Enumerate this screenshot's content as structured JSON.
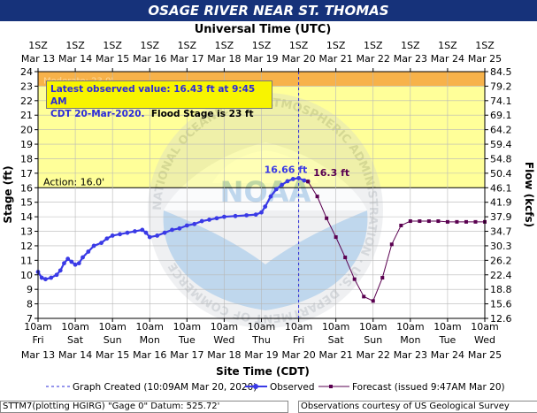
{
  "title": "OSAGE RIVER NEAR ST. THOMAS",
  "top_axis_title": "Universal Time (UTC)",
  "bottom_axis_title": "Site Time (CDT)",
  "left_axis_title": "Stage (ft)",
  "right_axis_title": "Flow (kcfs)",
  "info_line1": "Latest observed value: 16.43 ft at 9:45 AM",
  "info_line2a": "CDT 20-Mar-2020.",
  "info_line2b": "Flood Stage is 23 ft",
  "action_label": "Action: 16.0'",
  "moderate_label": "Moderate: 23.0'",
  "peak_label": "16.66 ft",
  "forecast_label": "16.3 ft",
  "legend": {
    "created": "Graph Created (10:09AM Mar 20, 2020)",
    "observed": "Observed",
    "forecast": "Forecast (issued 9:47AM Mar 20)"
  },
  "footer_left": "STTM7(plotting HGIRG) \"Gage 0\" Datum: 525.72'",
  "footer_right": "Observations courtesy of US Geological Survey",
  "watermark": "NOAA",
  "watermark_ring": "NATIONAL OCEANIC AND ATMOSPHERIC ADMINISTRATION · U.S. DEPARTMENT OF COMMERCE",
  "colors": {
    "title_bg": "#16327a",
    "observed": "#3a3ae6",
    "forecast": "#5a0050",
    "action_band": "#ffff99",
    "flood_band": "#f7b24a"
  },
  "chart_data": {
    "type": "line",
    "ylim": [
      7,
      24
    ],
    "y_ticks": [
      7,
      8,
      9,
      10,
      11,
      12,
      13,
      14,
      15,
      16,
      17,
      18,
      19,
      20,
      21,
      22,
      23,
      24
    ],
    "flow_ticks": [
      "12.6",
      "15.6",
      "18.8",
      "22.4",
      "26.2",
      "30.3",
      "34.7",
      "37.9",
      "41.9",
      "46.1",
      "50.4",
      "54.8",
      "59.4",
      "64.2",
      "69.1",
      "74.1",
      "79.2",
      "84.5"
    ],
    "top_ticks": [
      {
        "t": "1SZ",
        "d": "Mar 13"
      },
      {
        "t": "1SZ",
        "d": "Mar 14"
      },
      {
        "t": "1SZ",
        "d": "Mar 15"
      },
      {
        "t": "1SZ",
        "d": "Mar 16"
      },
      {
        "t": "1SZ",
        "d": "Mar 17"
      },
      {
        "t": "1SZ",
        "d": "Mar 18"
      },
      {
        "t": "1SZ",
        "d": "Mar 19"
      },
      {
        "t": "1SZ",
        "d": "Mar 20"
      },
      {
        "t": "1SZ",
        "d": "Mar 21"
      },
      {
        "t": "1SZ",
        "d": "Mar 22"
      },
      {
        "t": "1SZ",
        "d": "Mar 23"
      },
      {
        "t": "1SZ",
        "d": "Mar 24"
      },
      {
        "t": "1SZ",
        "d": "Mar 25"
      }
    ],
    "bottom_ticks": [
      {
        "t": "10am",
        "w": "Fri",
        "d": "Mar 13"
      },
      {
        "t": "10am",
        "w": "Sat",
        "d": "Mar 14"
      },
      {
        "t": "10am",
        "w": "Sun",
        "d": "Mar 15"
      },
      {
        "t": "10am",
        "w": "Mon",
        "d": "Mar 16"
      },
      {
        "t": "10am",
        "w": "Tue",
        "d": "Mar 17"
      },
      {
        "t": "10am",
        "w": "Wed",
        "d": "Mar 18"
      },
      {
        "t": "10am",
        "w": "Thu",
        "d": "Mar 19"
      },
      {
        "t": "10am",
        "w": "Fri",
        "d": "Mar 20"
      },
      {
        "t": "10am",
        "w": "Sat",
        "d": "Mar 21"
      },
      {
        "t": "10am",
        "w": "Sun",
        "d": "Mar 22"
      },
      {
        "t": "10am",
        "w": "Mon",
        "d": "Mar 23"
      },
      {
        "t": "10am",
        "w": "Tue",
        "d": "Mar 24"
      },
      {
        "t": "10am",
        "w": "Wed",
        "d": "Mar 25"
      }
    ],
    "action_stage": 16,
    "moderate_stage": 23,
    "flood_stage_top": 24,
    "graph_created_day": 7.0,
    "series": [
      {
        "name": "Observed",
        "points": [
          [
            0.0,
            10.2
          ],
          [
            0.1,
            9.8
          ],
          [
            0.2,
            9.7
          ],
          [
            0.35,
            9.8
          ],
          [
            0.5,
            10.0
          ],
          [
            0.6,
            10.3
          ],
          [
            0.7,
            10.8
          ],
          [
            0.8,
            11.1
          ],
          [
            0.9,
            10.9
          ],
          [
            1.0,
            10.7
          ],
          [
            1.1,
            10.8
          ],
          [
            1.2,
            11.2
          ],
          [
            1.35,
            11.6
          ],
          [
            1.5,
            12.0
          ],
          [
            1.7,
            12.2
          ],
          [
            1.85,
            12.5
          ],
          [
            2.0,
            12.7
          ],
          [
            2.2,
            12.8
          ],
          [
            2.4,
            12.9
          ],
          [
            2.6,
            13.0
          ],
          [
            2.8,
            13.1
          ],
          [
            2.9,
            12.9
          ],
          [
            3.0,
            12.6
          ],
          [
            3.2,
            12.7
          ],
          [
            3.4,
            12.9
          ],
          [
            3.6,
            13.1
          ],
          [
            3.8,
            13.2
          ],
          [
            4.0,
            13.4
          ],
          [
            4.2,
            13.5
          ],
          [
            4.4,
            13.7
          ],
          [
            4.6,
            13.8
          ],
          [
            4.8,
            13.9
          ],
          [
            5.0,
            14.0
          ],
          [
            5.3,
            14.05
          ],
          [
            5.6,
            14.1
          ],
          [
            5.85,
            14.15
          ],
          [
            6.0,
            14.3
          ],
          [
            6.1,
            14.7
          ],
          [
            6.25,
            15.4
          ],
          [
            6.4,
            15.9
          ],
          [
            6.55,
            16.2
          ],
          [
            6.7,
            16.45
          ],
          [
            6.85,
            16.6
          ],
          [
            7.0,
            16.66
          ],
          [
            7.15,
            16.5
          ],
          [
            7.25,
            16.43
          ]
        ]
      },
      {
        "name": "Forecast",
        "points": [
          [
            7.25,
            16.43
          ],
          [
            7.5,
            15.4
          ],
          [
            7.75,
            13.9
          ],
          [
            8.0,
            12.6
          ],
          [
            8.25,
            11.2
          ],
          [
            8.5,
            9.7
          ],
          [
            8.75,
            8.5
          ],
          [
            9.0,
            8.2
          ],
          [
            9.25,
            9.8
          ],
          [
            9.5,
            12.1
          ],
          [
            9.75,
            13.4
          ],
          [
            10.0,
            13.7
          ],
          [
            10.25,
            13.7
          ],
          [
            10.5,
            13.7
          ],
          [
            10.75,
            13.7
          ],
          [
            11.0,
            13.65
          ],
          [
            11.25,
            13.65
          ],
          [
            11.5,
            13.65
          ],
          [
            11.75,
            13.65
          ],
          [
            12.0,
            13.65
          ]
        ]
      }
    ]
  }
}
